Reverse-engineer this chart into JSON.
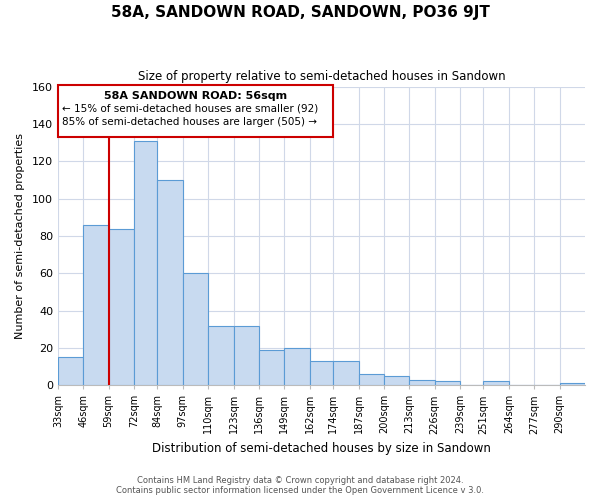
{
  "title": "58A, SANDOWN ROAD, SANDOWN, PO36 9JT",
  "subtitle": "Size of property relative to semi-detached houses in Sandown",
  "xlabel": "Distribution of semi-detached houses by size in Sandown",
  "ylabel": "Number of semi-detached properties",
  "footer_line1": "Contains HM Land Registry data © Crown copyright and database right 2024.",
  "footer_line2": "Contains public sector information licensed under the Open Government Licence v 3.0.",
  "bin_labels": [
    "33sqm",
    "46sqm",
    "59sqm",
    "72sqm",
    "84sqm",
    "97sqm",
    "110sqm",
    "123sqm",
    "136sqm",
    "149sqm",
    "162sqm",
    "174sqm",
    "187sqm",
    "200sqm",
    "213sqm",
    "226sqm",
    "239sqm",
    "251sqm",
    "264sqm",
    "277sqm",
    "290sqm"
  ],
  "bar_values": [
    15,
    86,
    84,
    131,
    110,
    60,
    32,
    32,
    19,
    20,
    13,
    13,
    6,
    5,
    3,
    2,
    0,
    2,
    0,
    0,
    1
  ],
  "bar_color": "#c8daf0",
  "bar_edge_color": "#5b9bd5",
  "vline_x": 59,
  "vline_color": "#cc0000",
  "box_edge_color": "#cc0000",
  "property_label": "58A SANDOWN ROAD: 56sqm",
  "annotation_line1": "← 15% of semi-detached houses are smaller (92)",
  "annotation_line2": "85% of semi-detached houses are larger (505) →",
  "ylim": [
    0,
    160
  ],
  "yticks": [
    0,
    20,
    40,
    60,
    80,
    100,
    120,
    140,
    160
  ],
  "background_color": "#ffffff",
  "grid_color": "#d0d8e8"
}
